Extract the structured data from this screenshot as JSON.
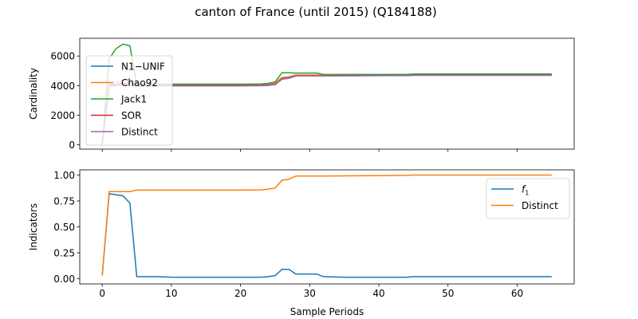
{
  "figure": {
    "title": "canton of France (until 2015) (Q184188)"
  },
  "chart_data": [
    {
      "type": "line",
      "ylabel": "Cardinality",
      "xlabel": "",
      "xlim": [
        -3.25,
        68.25
      ],
      "ylim": [
        -300,
        7200
      ],
      "xticks": [
        0,
        10,
        20,
        30,
        40,
        50,
        60
      ],
      "xticklabels_visible": false,
      "yticks": [
        0,
        2000,
        4000,
        6000
      ],
      "yticklabels": [
        "0",
        "2000",
        "4000",
        "6000"
      ],
      "legend_position": "upper left",
      "colors": {
        "N1-UNIF": "#1f77b4",
        "Chao92": "#ff7f0e",
        "Jack1": "#2ca02c",
        "SOR": "#d62728",
        "Distinct": "#9467bd"
      },
      "series": [
        {
          "name": "N1−UNIF",
          "color": "#1f77b4",
          "x": [
            0,
            1,
            2,
            3,
            4,
            5,
            8,
            10,
            15,
            20,
            23,
            24,
            25,
            26,
            27,
            28,
            30,
            31,
            32,
            35,
            40,
            44,
            45,
            50,
            55,
            60,
            65
          ],
          "y": [
            0,
            4050,
            4100,
            4150,
            4200,
            4020,
            4020,
            4020,
            4020,
            4020,
            4020,
            4040,
            4100,
            4480,
            4520,
            4680,
            4680,
            4680,
            4680,
            4690,
            4700,
            4700,
            4720,
            4720,
            4720,
            4720,
            4720
          ]
        },
        {
          "name": "Chao92",
          "color": "#ff7f0e",
          "x": [
            0,
            1,
            2,
            3,
            4,
            5,
            8,
            10,
            15,
            20,
            23,
            24,
            25,
            26,
            27,
            28,
            30,
            31,
            32,
            35,
            40,
            44,
            45,
            50,
            55,
            60,
            65
          ],
          "y": [
            0,
            4150,
            4250,
            4350,
            4450,
            4080,
            4080,
            4080,
            4080,
            4080,
            4090,
            4110,
            4180,
            4550,
            4600,
            4720,
            4720,
            4720,
            4710,
            4720,
            4740,
            4750,
            4770,
            4780,
            4780,
            4780,
            4780
          ]
        },
        {
          "name": "Jack1",
          "color": "#2ca02c",
          "x": [
            0,
            1,
            2,
            3,
            4,
            5,
            8,
            10,
            15,
            20,
            23,
            24,
            25,
            26,
            27,
            28,
            30,
            31,
            32,
            35,
            40,
            44,
            45,
            50,
            55,
            60,
            65
          ],
          "y": [
            0,
            5800,
            6500,
            6800,
            6700,
            4100,
            4100,
            4100,
            4100,
            4100,
            4110,
            4150,
            4250,
            4870,
            4870,
            4850,
            4850,
            4850,
            4750,
            4750,
            4750,
            4750,
            4780,
            4780,
            4780,
            4780,
            4780
          ]
        },
        {
          "name": "SOR",
          "color": "#d62728",
          "x": [
            0,
            1,
            2,
            3,
            4,
            5,
            8,
            10,
            15,
            20,
            23,
            24,
            25,
            26,
            27,
            28,
            30,
            31,
            32,
            35,
            40,
            44,
            45,
            50,
            55,
            60,
            65
          ],
          "y": [
            0,
            4000,
            4050,
            4100,
            4150,
            4000,
            4000,
            4000,
            4000,
            4000,
            4000,
            4020,
            4080,
            4450,
            4500,
            4660,
            4660,
            4660,
            4660,
            4670,
            4680,
            4680,
            4700,
            4700,
            4700,
            4700,
            4700
          ]
        },
        {
          "name": "Distinct",
          "color": "#9467bd",
          "x": [
            0,
            1,
            2,
            3,
            4,
            5,
            8,
            10,
            15,
            20,
            23,
            24,
            25,
            26,
            27,
            28,
            30,
            31,
            32,
            35,
            40,
            44,
            45,
            50,
            55,
            60,
            65
          ],
          "y": [
            0,
            3950,
            4000,
            4050,
            4100,
            3980,
            3980,
            3980,
            3980,
            3980,
            3990,
            4010,
            4060,
            4430,
            4490,
            4650,
            4650,
            4650,
            4650,
            4660,
            4670,
            4670,
            4690,
            4690,
            4690,
            4690,
            4690
          ]
        }
      ]
    },
    {
      "type": "line",
      "ylabel": "Indicators",
      "xlabel": "Sample Periods",
      "xlim": [
        -3.25,
        68.25
      ],
      "ylim": [
        -0.05,
        1.05
      ],
      "xticks": [
        0,
        10,
        20,
        30,
        40,
        50,
        60
      ],
      "xticklabels": [
        "0",
        "10",
        "20",
        "30",
        "40",
        "50",
        "60"
      ],
      "yticks": [
        0,
        0.25,
        0.5,
        0.75,
        1.0
      ],
      "yticklabels": [
        "0.00",
        "0.25",
        "0.50",
        "0.75",
        "1.00"
      ],
      "legend_position": "upper right",
      "series": [
        {
          "name": "f1",
          "color": "#1f77b4",
          "x": [
            0,
            1,
            2,
            3,
            4,
            5,
            8,
            10,
            15,
            20,
            23,
            24,
            25,
            26,
            27,
            28,
            30,
            31,
            32,
            35,
            40,
            44,
            45,
            50,
            55,
            60,
            65
          ],
          "y": [
            0.03,
            0.82,
            0.81,
            0.8,
            0.73,
            0.02,
            0.02,
            0.015,
            0.015,
            0.015,
            0.015,
            0.02,
            0.03,
            0.09,
            0.09,
            0.045,
            0.045,
            0.045,
            0.02,
            0.015,
            0.015,
            0.015,
            0.02,
            0.02,
            0.02,
            0.02,
            0.02
          ]
        },
        {
          "name": "Distinct",
          "color": "#ff7f0e",
          "x": [
            0,
            1,
            2,
            3,
            4,
            5,
            8,
            10,
            15,
            20,
            23,
            24,
            25,
            26,
            27,
            28,
            30,
            31,
            32,
            35,
            40,
            44,
            45,
            50,
            55,
            60,
            65
          ],
          "y": [
            0.03,
            0.84,
            0.84,
            0.84,
            0.84,
            0.855,
            0.855,
            0.855,
            0.855,
            0.855,
            0.857,
            0.865,
            0.875,
            0.95,
            0.96,
            0.99,
            0.99,
            0.99,
            0.99,
            0.992,
            0.995,
            0.997,
            1.0,
            1.0,
            1.0,
            1.0,
            1.0
          ]
        }
      ]
    }
  ]
}
